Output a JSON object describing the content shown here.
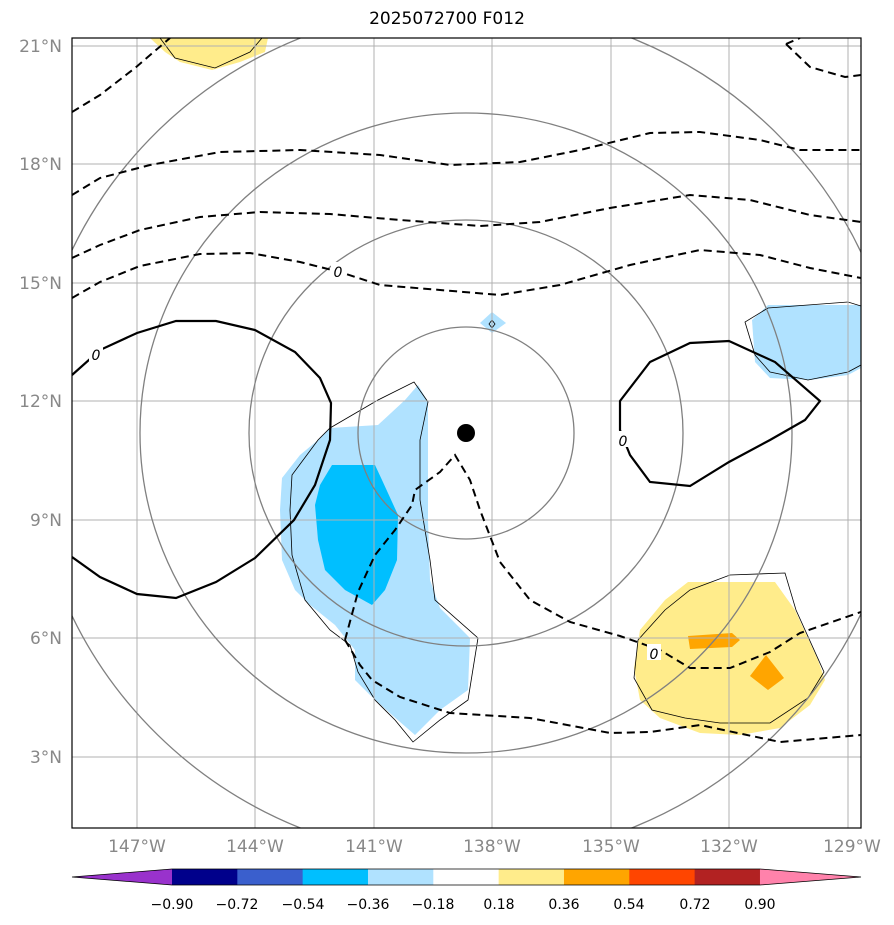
{
  "title": "2025072700 F012",
  "lat_labels": [
    "21°N",
    "18°N",
    "15°N",
    "12°N",
    "9°N",
    "6°N",
    "3°N"
  ],
  "lon_labels": [
    "147°W",
    "144°W",
    "141°W",
    "138°W",
    "135°W",
    "132°W",
    "129°W"
  ],
  "contour_labels": [
    "0",
    "0",
    "0",
    "0"
  ],
  "colorbar": {
    "tick_labels": [
      "−0.90",
      "−0.72",
      "−0.54",
      "−0.36",
      "−0.18",
      "0.18",
      "0.36",
      "0.54",
      "0.72",
      "0.90"
    ],
    "colors": [
      "#9932cc",
      "#00008b",
      "#3a5fcd",
      "#00bfff",
      "#b0e2ff",
      "#ffffff",
      "#ffec8b",
      "#ffa500",
      "#ff4500",
      "#b22222",
      "#ff82ab"
    ]
  },
  "colors": {
    "frame": "#000000",
    "grid": "#b0b0b0",
    "range_rings": "#808080",
    "contour": "#000000"
  }
}
